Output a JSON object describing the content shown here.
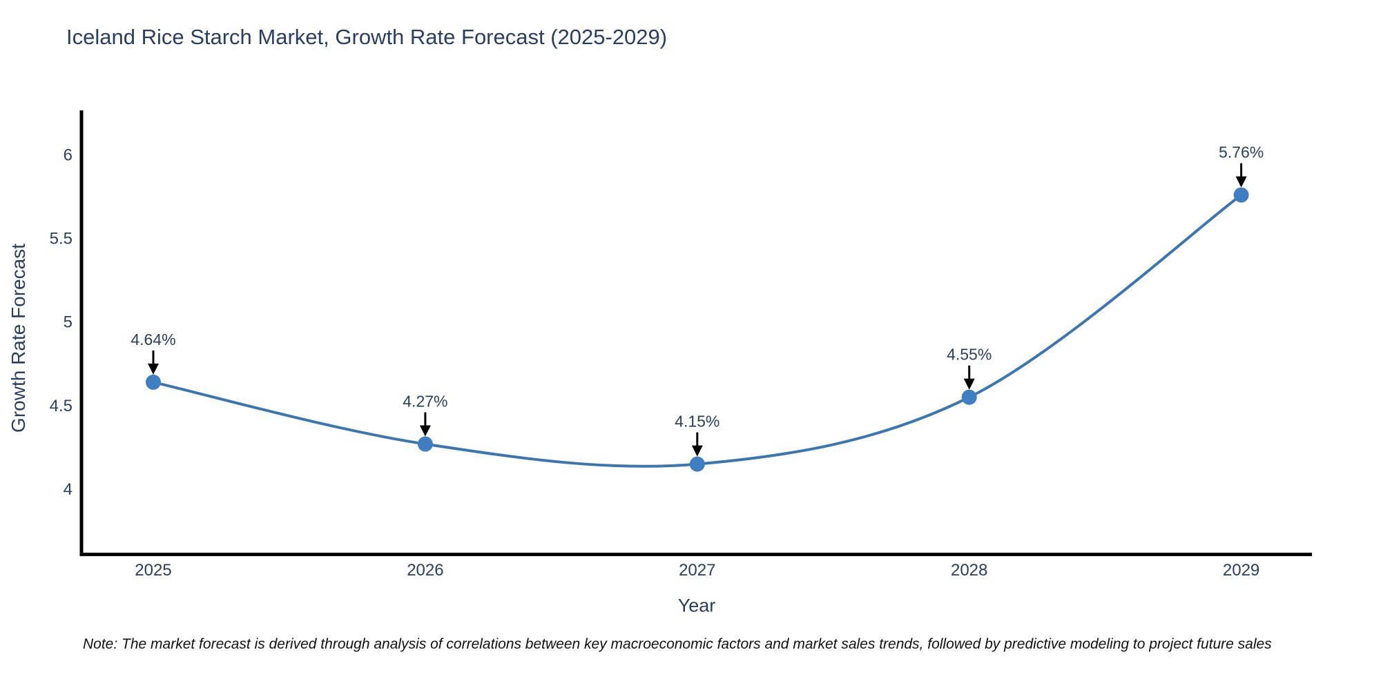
{
  "title": "Iceland Rice Starch Market, Growth Rate Forecast (2025-2029)",
  "note": "Note: The market forecast is derived through analysis of correlations between key macroeconomic factors and market sales trends, followed by predictive modeling to project future sales",
  "chart_data": {
    "type": "line",
    "title": "Iceland Rice Starch Market, Growth Rate Forecast (2025-2029)",
    "xlabel": "Year",
    "ylabel": "Growth Rate Forecast",
    "x": [
      2025,
      2026,
      2027,
      2028,
      2029
    ],
    "y": [
      4.64,
      4.27,
      4.15,
      4.55,
      5.76
    ],
    "point_labels": [
      "4.64%",
      "4.27%",
      "4.15%",
      "4.55%",
      "5.76%"
    ],
    "x_tick_labels": [
      "2025",
      "2026",
      "2027",
      "2028",
      "2029"
    ],
    "x_tick_values": [
      2025,
      2026,
      2027,
      2028,
      2029
    ],
    "y_tick_labels": [
      "4",
      "4.5",
      "5",
      "5.5",
      "6"
    ],
    "y_tick_values": [
      4,
      4.5,
      5,
      5.5,
      6
    ],
    "xlim": [
      2024.736,
      2029.26
    ],
    "ylim": [
      3.62,
      6.266
    ],
    "grid": false,
    "legend": "none",
    "line_shape": "spline",
    "annotation_style": "value label above point with downward black arrow",
    "colors": {
      "line": "#3c76b0",
      "marker": "#3f7fc1",
      "axis": "#000000",
      "tick_text": "#2a3f5f",
      "annotation_text": "#2a3f5f",
      "note_text": "#111111",
      "background": "#ffffff"
    }
  }
}
